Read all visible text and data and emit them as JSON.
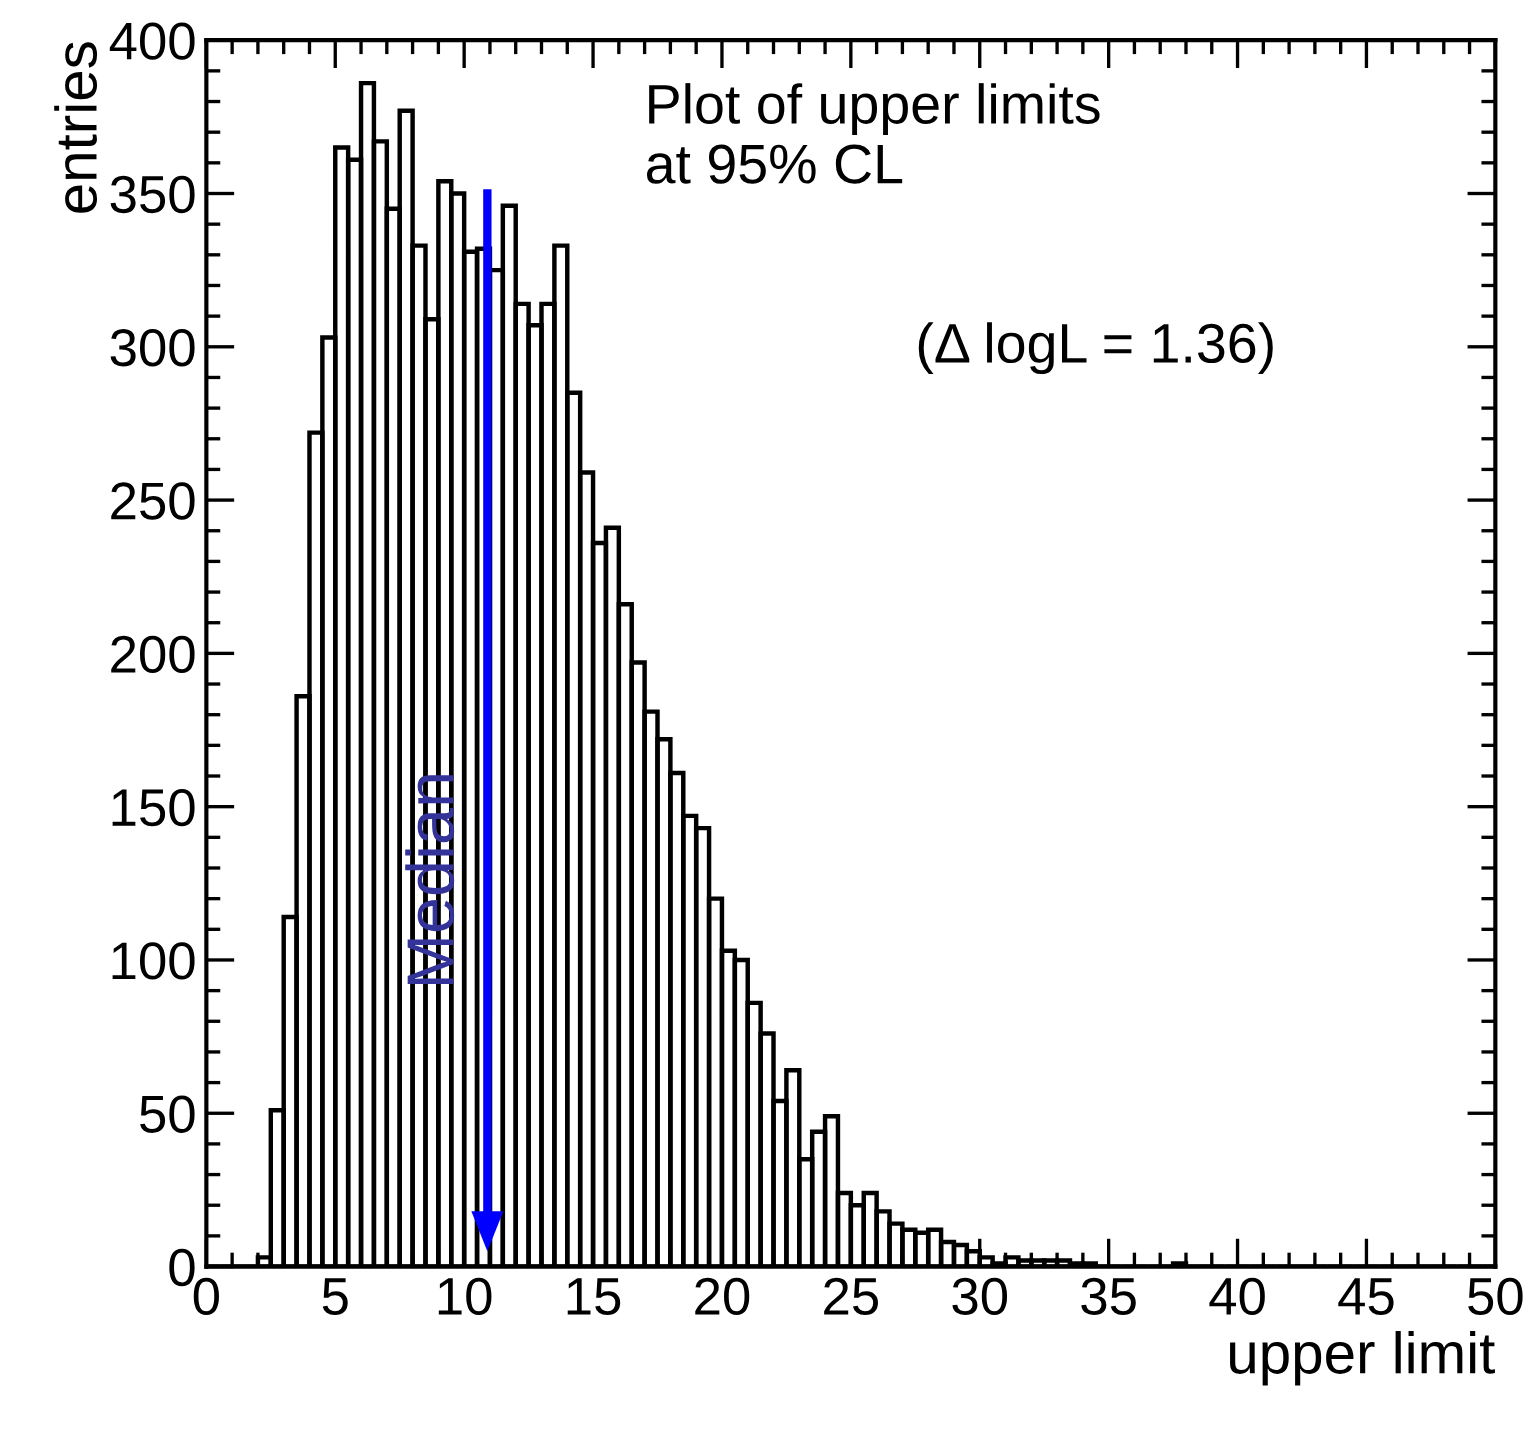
{
  "chart_data": {
    "type": "histogram",
    "xlabel": "upper limit",
    "ylabel": "entries",
    "bins": [
      0,
      0.5,
      1,
      1.5,
      2,
      2.5,
      3,
      3.5,
      4,
      4.5,
      5,
      5.5,
      6,
      6.5,
      7,
      7.5,
      8,
      8.5,
      9,
      9.5,
      10,
      10.5,
      11,
      11.5,
      12,
      12.5,
      13,
      13.5,
      14,
      14.5,
      15,
      15.5,
      16,
      16.5,
      17,
      17.5,
      18,
      18.5,
      19,
      19.5,
      20,
      20.5,
      21,
      21.5,
      22,
      22.5,
      23,
      23.5,
      24,
      24.5,
      25,
      25.5,
      26,
      26.5,
      27,
      27.5,
      28,
      28.5,
      29,
      29.5,
      30,
      30.5,
      31,
      31.5,
      32,
      32.5,
      33,
      33.5,
      34,
      34.5,
      35,
      35.5,
      36,
      36.5,
      37,
      37.5,
      38,
      38.5,
      39,
      39.5,
      40,
      40.5,
      41,
      41.5,
      42,
      42.5,
      43,
      43.5,
      44,
      44.5,
      45,
      45.5,
      46,
      46.5,
      47,
      47.5,
      48,
      48.5,
      49,
      49.5,
      50
    ],
    "values": [
      0,
      0,
      0,
      0,
      3,
      51,
      114,
      186,
      272,
      303,
      365,
      361,
      386,
      367,
      345,
      377,
      333,
      309,
      354,
      350,
      331,
      332,
      325,
      346,
      314,
      307,
      314,
      333,
      285,
      259,
      236,
      241,
      216,
      197,
      181,
      172,
      161,
      147,
      143,
      120,
      103,
      100,
      86,
      76,
      54,
      64,
      35,
      44,
      49,
      24,
      20,
      24,
      18,
      14,
      12,
      11,
      12,
      8,
      7,
      5,
      3,
      1,
      3,
      2,
      2,
      2,
      2,
      1,
      1,
      0,
      0,
      0,
      0,
      0,
      0,
      1,
      0,
      0,
      0,
      0,
      0,
      0,
      0,
      0,
      0,
      0,
      0,
      0,
      0,
      0,
      0,
      0,
      0,
      0,
      0,
      0,
      0,
      0,
      0,
      0
    ],
    "color": "#000000",
    "xlim": [
      0,
      50
    ],
    "ylim": [
      0,
      400
    ],
    "xticks": [
      0,
      5,
      10,
      15,
      20,
      25,
      30,
      35,
      40,
      45,
      50
    ],
    "yticks": [
      0,
      50,
      100,
      150,
      200,
      250,
      300,
      350,
      400
    ],
    "grid": false,
    "legend": false,
    "ref_lines": [
      {
        "axis": "x",
        "value": 10.9,
        "label": "Median",
        "color": "#0000ff"
      }
    ],
    "annotations": [
      "Plot of upper limits\nat 95% CL",
      "(Δ logL = 1.36)"
    ]
  }
}
